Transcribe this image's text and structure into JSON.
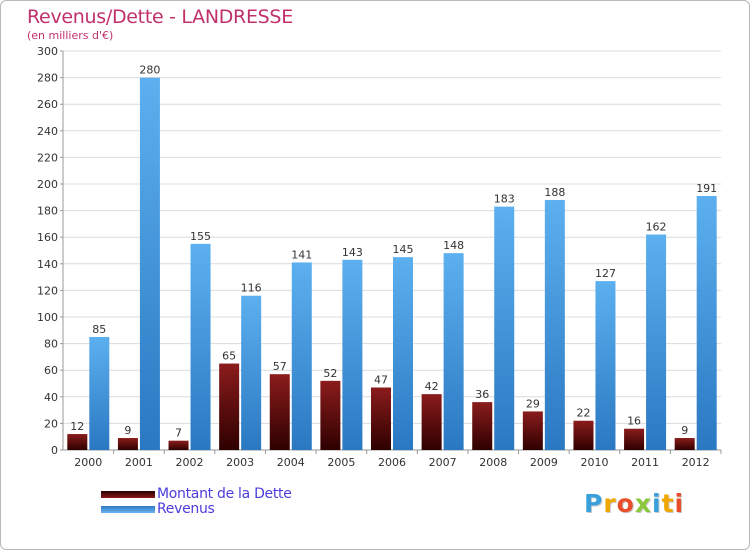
{
  "chart_data": {
    "type": "bar",
    "title": "Revenus/Dette - LANDRESSE",
    "subtitle": "(en milliers d'€)",
    "categories": [
      "2000",
      "2001",
      "2002",
      "2003",
      "2004",
      "2005",
      "2006",
      "2007",
      "2008",
      "2009",
      "2010",
      "2011",
      "2012"
    ],
    "series": [
      {
        "name": "Montant de la Dette",
        "color": "#7a0f10",
        "values": [
          12,
          9,
          7,
          65,
          57,
          52,
          47,
          42,
          36,
          29,
          22,
          16,
          9
        ]
      },
      {
        "name": "Revenus",
        "color": "#4a9fe0",
        "values": [
          85,
          280,
          155,
          116,
          141,
          143,
          145,
          148,
          183,
          188,
          127,
          162,
          191
        ]
      }
    ],
    "ylim": [
      0,
      300
    ],
    "yticks": [
      0,
      20,
      40,
      60,
      80,
      100,
      120,
      140,
      160,
      180,
      200,
      220,
      240,
      260,
      280,
      300
    ],
    "grid": true,
    "legend_position": "bottom-left"
  },
  "logo": {
    "text": "Proxiti",
    "letters": [
      "P",
      "r",
      "o",
      "x",
      "i",
      "t",
      "i"
    ],
    "colors": [
      "#39a0db",
      "#f0a800",
      "#e84e2c",
      "#8cc83c",
      "#39a0db",
      "#f0a800",
      "#e84e2c"
    ]
  }
}
